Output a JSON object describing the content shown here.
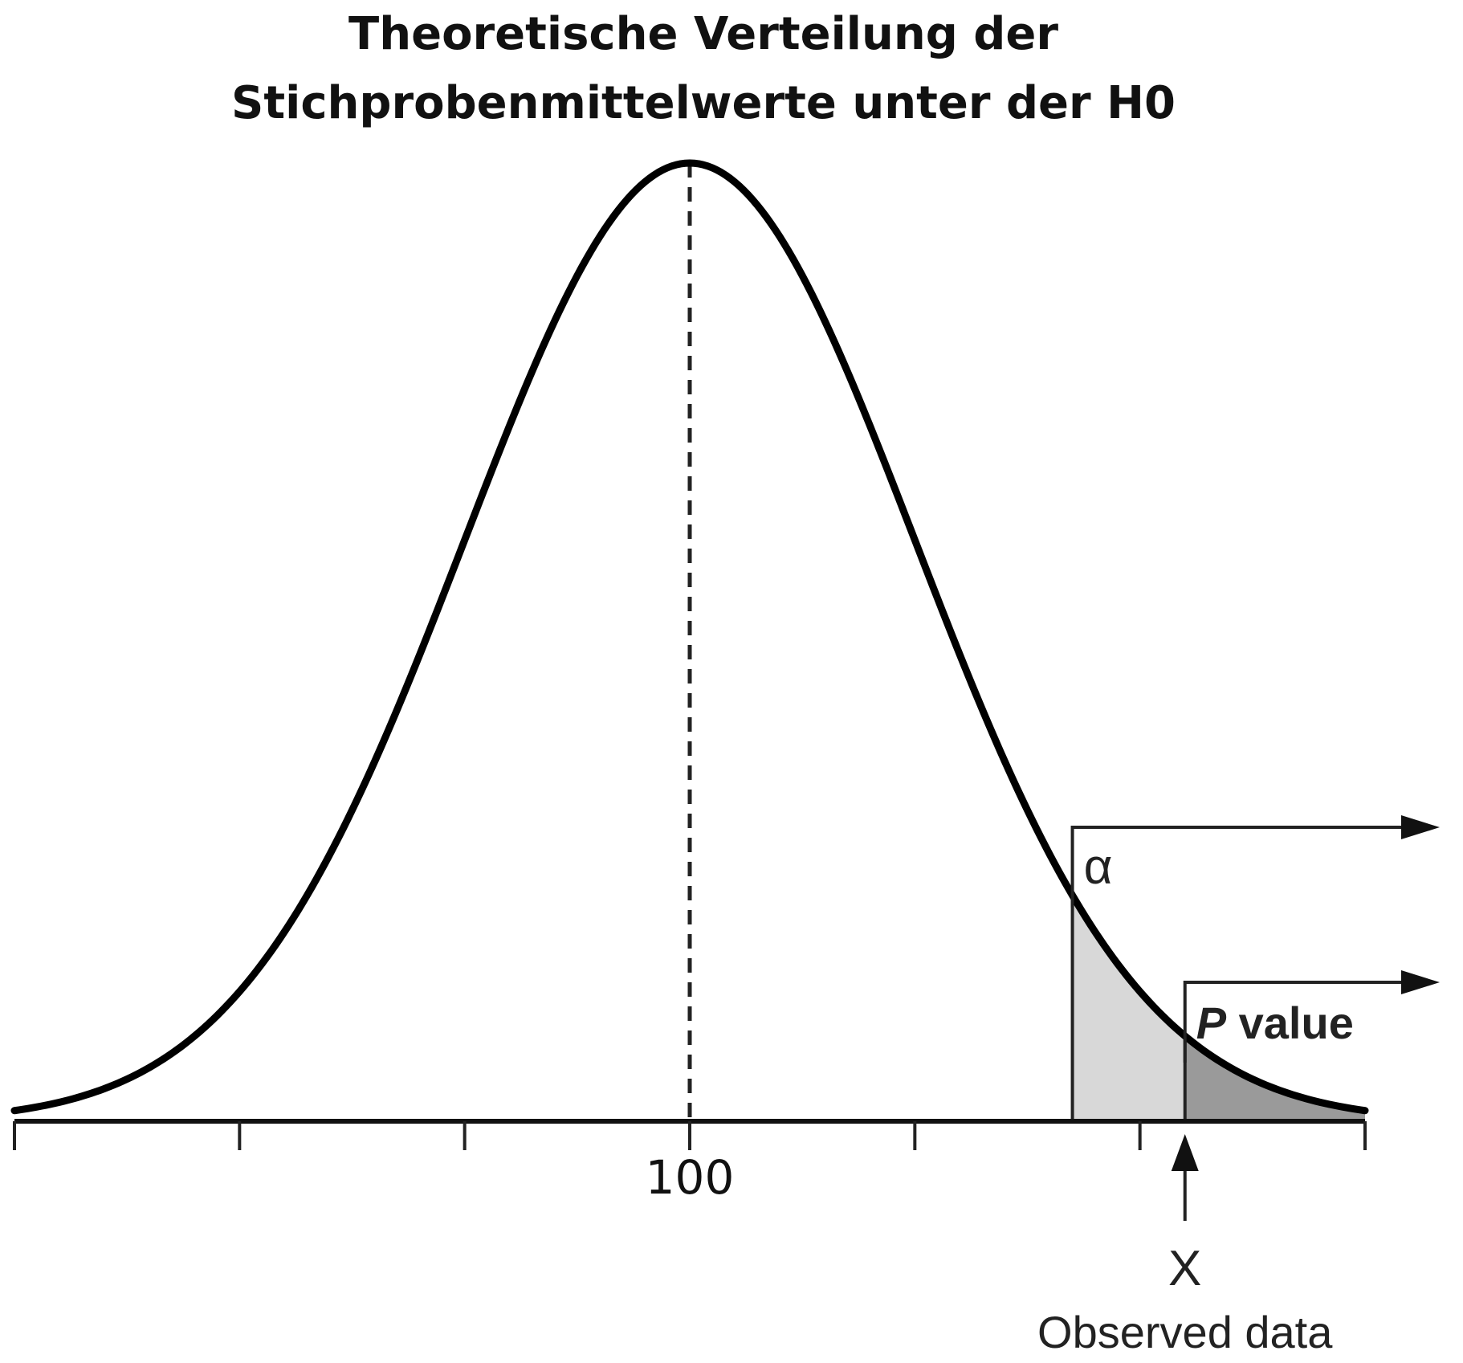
{
  "chart_data": {
    "type": "area",
    "title_lines": [
      "Theoretische Verteilung der",
      "Stichprobenmittelwerte unter der H0"
    ],
    "xlabel": "",
    "ylabel": "",
    "x_tick_labels": [
      {
        "value": 100,
        "label": "100"
      }
    ],
    "distribution": {
      "shape": "normal",
      "mean": 100,
      "sd": 1
    },
    "x_range": [
      97,
      103
    ],
    "grid": false,
    "mean_line": {
      "value": 100,
      "style": "dashed"
    },
    "regions": [
      {
        "name": "α",
        "from": 101.7,
        "to": 103,
        "fill": "#d8d8d8"
      },
      {
        "name": "P value",
        "from": 102.2,
        "to": 103,
        "fill": "#9a9a9a"
      }
    ],
    "annotations": [
      {
        "text": "X",
        "value": 102.2
      },
      {
        "text": "Observed data",
        "value": 102.2
      }
    ]
  }
}
